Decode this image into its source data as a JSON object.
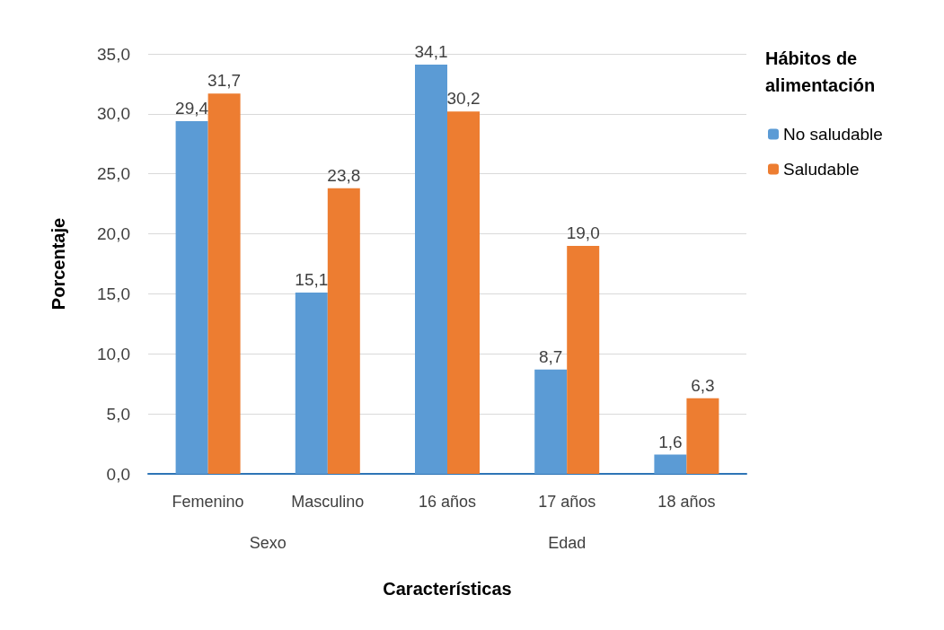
{
  "chart_data": {
    "type": "bar",
    "xlabel": "Características",
    "ylabel": "Porcentaje",
    "legend_title": "Hábitos de alimentación",
    "categories": [
      "Femenino",
      "Masculino",
      "16 años",
      "17 años",
      "18 años"
    ],
    "series": [
      {
        "name": "No saludable",
        "color": "#5b9bd5",
        "values": [
          29.4,
          15.1,
          34.1,
          8.7,
          1.6
        ],
        "value_labels": [
          "29,4",
          "15,1",
          "34,1",
          "8,7",
          "1,6"
        ]
      },
      {
        "name": "Saludable",
        "color": "#ed7d31",
        "values": [
          31.7,
          23.8,
          30.2,
          19.0,
          6.3
        ],
        "value_labels": [
          "31,7",
          "23,8",
          "30,2",
          "19,0",
          "6,3"
        ]
      }
    ],
    "annotations": [
      "Sexo",
      "Edad"
    ],
    "ylim": [
      0,
      35
    ],
    "yticks": [
      {
        "value": 0,
        "label": "0,0"
      },
      {
        "value": 5,
        "label": "5,0"
      },
      {
        "value": 10,
        "label": "10,0"
      },
      {
        "value": 15,
        "label": "15,0"
      },
      {
        "value": 20,
        "label": "20,0"
      },
      {
        "value": 25,
        "label": "25,0"
      },
      {
        "value": 30,
        "label": "30,0"
      },
      {
        "value": 35,
        "label": "35,0"
      }
    ],
    "grid": "y",
    "legend": "top right"
  }
}
